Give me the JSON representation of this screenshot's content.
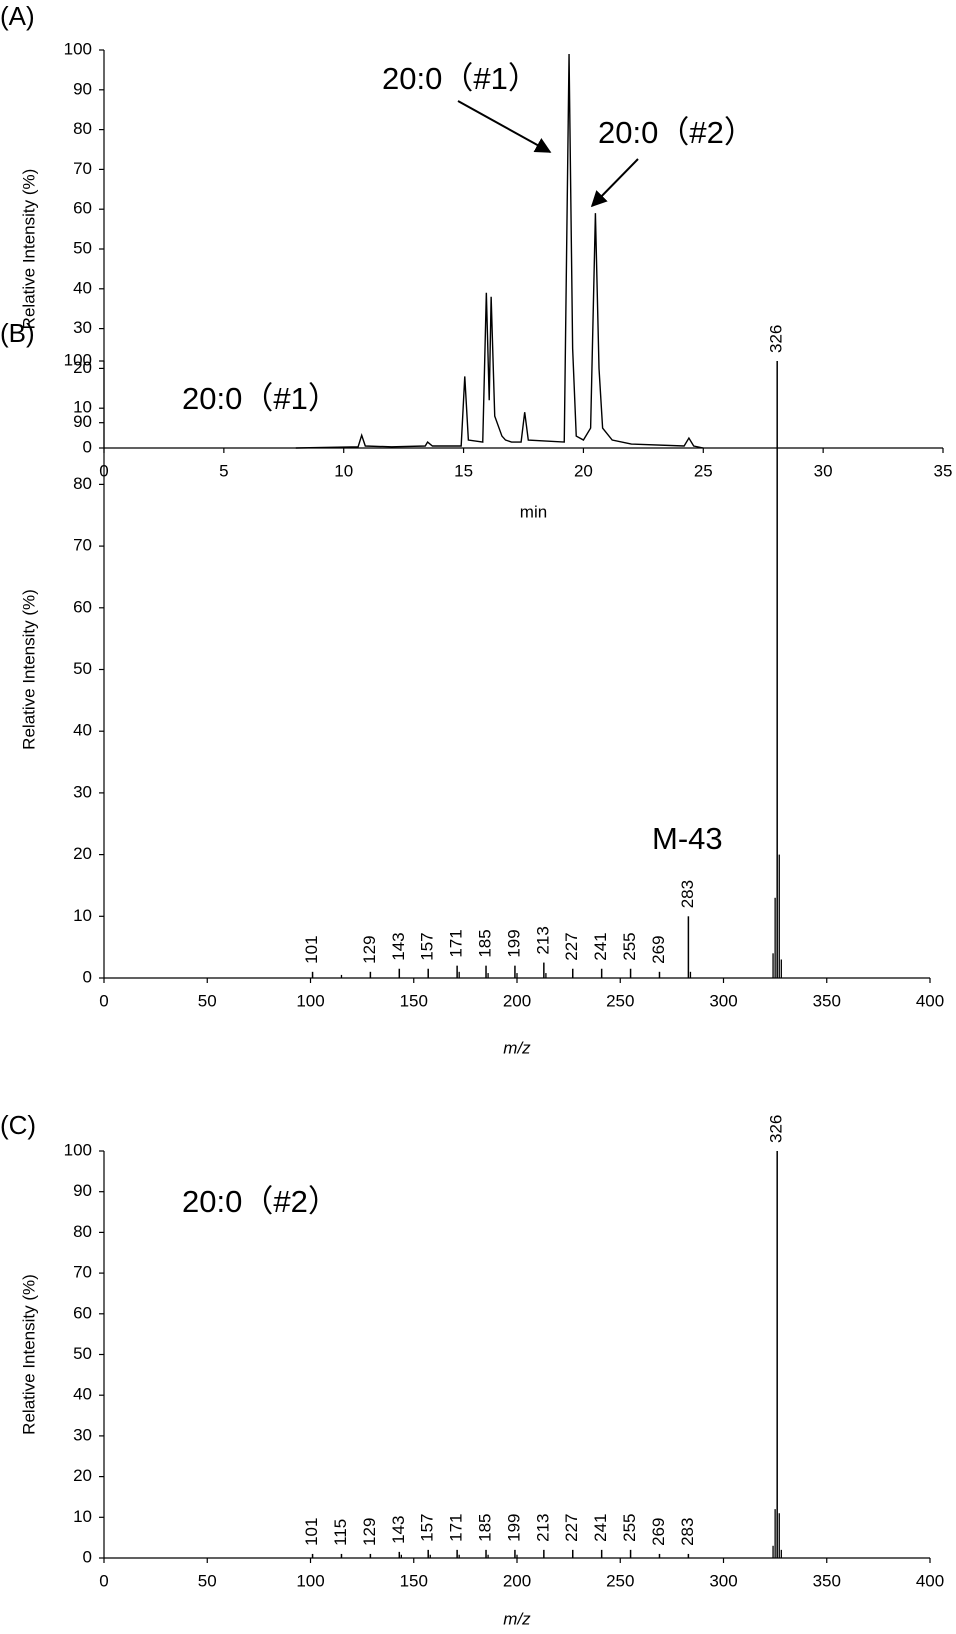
{
  "chart_data": [
    {
      "type": "line",
      "panel_label": "(A)",
      "x_label": "min",
      "y_label": "Relative Intensity (%)",
      "xlim": [
        0,
        35
      ],
      "ylim": [
        0,
        100
      ],
      "xticks": [
        0,
        5,
        10,
        15,
        20,
        25,
        30,
        35
      ],
      "yticks": [
        0,
        10,
        20,
        30,
        40,
        50,
        60,
        70,
        80,
        90,
        100
      ],
      "color": "#000000",
      "x": [
        8,
        10.6,
        10.75,
        10.9,
        12,
        13.4,
        13.5,
        13.7,
        14.9,
        15.05,
        15.2,
        15.8,
        15.95,
        16.07,
        16.15,
        16.3,
        16.6,
        16.75,
        17.0,
        17.4,
        17.55,
        17.7,
        19.2,
        19.4,
        19.55,
        19.7,
        20.0,
        20.3,
        20.5,
        20.65,
        20.8,
        21.2,
        22,
        24.2,
        24.4,
        24.6,
        25
      ],
      "values": [
        0,
        0.3,
        3.2,
        0.5,
        0.3,
        0.5,
        1.5,
        0.5,
        0.5,
        18,
        2,
        1.5,
        39,
        12,
        38,
        8,
        3,
        2,
        1.5,
        1.5,
        9,
        2,
        1.5,
        99,
        25,
        3,
        2,
        5,
        59,
        20,
        5,
        2,
        1,
        0.5,
        2.5,
        0.5,
        0
      ],
      "annotations": [
        "20:0（#1）",
        "20:0（#2）"
      ]
    },
    {
      "type": "stem",
      "panel_label": "(B)",
      "x_label": "m/z",
      "x_label_italic": true,
      "y_label": "Relative Intensity (%)",
      "xlim": [
        0,
        400
      ],
      "ylim": [
        0,
        100
      ],
      "xticks": [
        0,
        50,
        100,
        150,
        200,
        250,
        300,
        350,
        400
      ],
      "yticks": [
        0,
        10,
        20,
        30,
        40,
        50,
        60,
        70,
        80,
        90,
        100
      ],
      "color": "#000000",
      "x": [
        101,
        129,
        143,
        157,
        171,
        185,
        199,
        213,
        227,
        241,
        255,
        269,
        283,
        326
      ],
      "values": [
        1,
        1,
        1.5,
        1.5,
        2,
        2,
        2,
        2.5,
        1.5,
        1.5,
        1.5,
        1,
        10,
        100
      ],
      "other_x": [
        115,
        172,
        186,
        200,
        214,
        284,
        324,
        325,
        327,
        328
      ],
      "other_values": [
        0.5,
        1,
        0.8,
        0.8,
        0.8,
        1,
        4,
        13,
        20,
        3
      ],
      "annotations": [
        "20:0（#1）",
        "M-43"
      ]
    },
    {
      "type": "stem",
      "panel_label": "(C)",
      "x_label": "m/z",
      "x_label_italic": true,
      "y_label": "Relative Intensity (%)",
      "xlim": [
        0,
        400
      ],
      "ylim": [
        0,
        100
      ],
      "xticks": [
        0,
        50,
        100,
        150,
        200,
        250,
        300,
        350,
        400
      ],
      "yticks": [
        0,
        10,
        20,
        30,
        40,
        50,
        60,
        70,
        80,
        90,
        100
      ],
      "color": "#000000",
      "x": [
        101,
        115,
        129,
        143,
        157,
        171,
        185,
        199,
        213,
        227,
        241,
        255,
        269,
        283,
        326
      ],
      "values": [
        1,
        1,
        1,
        1.5,
        2,
        2,
        2,
        2,
        2,
        2,
        2,
        2,
        1,
        1,
        100
      ],
      "other_x": [
        144,
        158,
        172,
        186,
        200,
        324,
        325,
        327,
        328
      ],
      "other_values": [
        0.8,
        0.8,
        0.8,
        0.8,
        0.8,
        3,
        12,
        11,
        2
      ],
      "annotations": [
        "20:0（#2）"
      ]
    }
  ]
}
